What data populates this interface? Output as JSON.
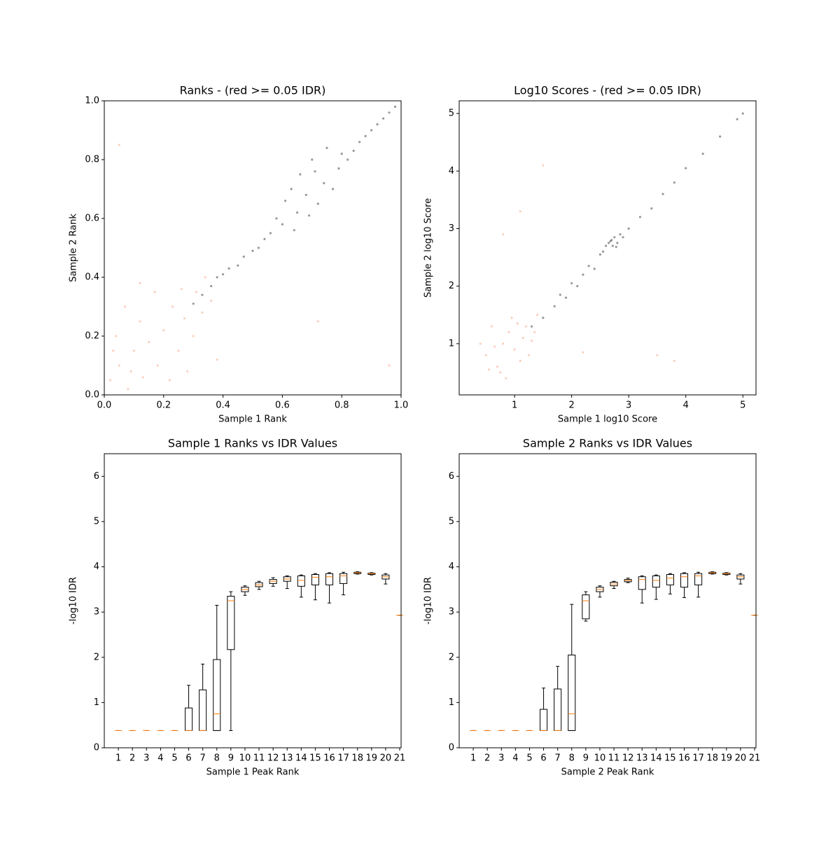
{
  "chart_data": [
    {
      "type": "scatter",
      "title": "Ranks - (red >= 0.05 IDR)",
      "xlabel": "Sample 1 Rank",
      "ylabel": "Sample 2 Rank",
      "xlim": [
        0,
        1
      ],
      "ylim": [
        0,
        1
      ],
      "xticks": [
        {
          "value": 0,
          "label": "0.0"
        },
        0.2,
        0.4,
        0.6,
        0.8,
        {
          "value": 1,
          "label": "1.0"
        }
      ],
      "yticks": [
        {
          "value": 0,
          "label": "0.0"
        },
        0.2,
        0.4,
        0.6,
        0.8,
        {
          "value": 1,
          "label": "1.0"
        }
      ],
      "series": [
        {
          "color": "#333333",
          "x": [
            0.3,
            0.33,
            0.36,
            0.38,
            0.4,
            0.42,
            0.45,
            0.47,
            0.5,
            0.52,
            0.54,
            0.56,
            0.58,
            0.6,
            0.61,
            0.63,
            0.65,
            0.66,
            0.68,
            0.7,
            0.72,
            0.74,
            0.75,
            0.77,
            0.79,
            0.8,
            0.82,
            0.84,
            0.86,
            0.88,
            0.9,
            0.92,
            0.94,
            0.96,
            0.98,
            0.69,
            0.71,
            0.64
          ],
          "values": [
            0.31,
            0.34,
            0.37,
            0.4,
            0.41,
            0.43,
            0.44,
            0.47,
            0.49,
            0.5,
            0.53,
            0.55,
            0.6,
            0.58,
            0.66,
            0.7,
            0.62,
            0.75,
            0.68,
            0.8,
            0.65,
            0.72,
            0.84,
            0.7,
            0.77,
            0.82,
            0.8,
            0.83,
            0.86,
            0.88,
            0.9,
            0.92,
            0.94,
            0.96,
            0.98,
            0.61,
            0.76,
            0.56
          ]
        },
        {
          "color": "#f4a582",
          "x": [
            0.02,
            0.04,
            0.05,
            0.07,
            0.08,
            0.1,
            0.12,
            0.13,
            0.15,
            0.17,
            0.18,
            0.2,
            0.22,
            0.23,
            0.25,
            0.27,
            0.28,
            0.3,
            0.31,
            0.33,
            0.34,
            0.36,
            0.38,
            0.12,
            0.05,
            0.96,
            0.72,
            0.03,
            0.09,
            0.26
          ],
          "values": [
            0.05,
            0.2,
            0.1,
            0.3,
            0.02,
            0.15,
            0.25,
            0.06,
            0.18,
            0.35,
            0.1,
            0.22,
            0.05,
            0.3,
            0.15,
            0.26,
            0.08,
            0.2,
            0.35,
            0.28,
            0.4,
            0.32,
            0.12,
            0.38,
            0.85,
            0.1,
            0.25,
            0.15,
            0.08,
            0.36
          ]
        }
      ]
    },
    {
      "type": "scatter",
      "title": "Log10 Scores - (red >= 0.05 IDR)",
      "xlabel": "Sample 1 log10 Score",
      "ylabel": "Sample 2 log10 Score",
      "xlim": [
        0.03,
        5.23
      ],
      "ylim": [
        0.11,
        5.22
      ],
      "xticks": [
        1,
        2,
        3,
        4,
        5
      ],
      "yticks": [
        1,
        2,
        3,
        4,
        5
      ],
      "series": [
        {
          "color": "#333333",
          "x": [
            1.3,
            1.5,
            1.7,
            1.8,
            1.9,
            2.0,
            2.1,
            2.2,
            2.3,
            2.4,
            2.5,
            2.55,
            2.6,
            2.65,
            2.7,
            2.72,
            2.75,
            2.8,
            2.85,
            2.9,
            3.0,
            3.2,
            3.4,
            3.6,
            3.8,
            4.0,
            4.3,
            4.6,
            4.9,
            5.0,
            2.68,
            2.78
          ],
          "values": [
            1.3,
            1.45,
            1.65,
            1.85,
            1.8,
            2.05,
            2.0,
            2.2,
            2.35,
            2.3,
            2.55,
            2.6,
            2.7,
            2.75,
            2.8,
            2.7,
            2.85,
            2.75,
            2.9,
            2.85,
            3.0,
            3.2,
            3.35,
            3.6,
            3.8,
            4.05,
            4.3,
            4.6,
            4.9,
            5.0,
            2.78,
            2.68
          ]
        },
        {
          "color": "#f4a582",
          "x": [
            0.5,
            0.6,
            0.7,
            0.8,
            0.85,
            0.9,
            1.0,
            1.05,
            1.1,
            1.15,
            1.2,
            1.25,
            1.3,
            0.4,
            0.75,
            0.95,
            1.35,
            1.4,
            0.65,
            1.5,
            0.8,
            1.1,
            3.5,
            3.8,
            2.2,
            0.55
          ],
          "values": [
            0.8,
            1.3,
            0.6,
            1.0,
            0.4,
            1.2,
            0.9,
            1.35,
            0.7,
            1.1,
            1.3,
            0.8,
            1.05,
            1.0,
            0.5,
            1.45,
            1.2,
            1.5,
            0.95,
            4.1,
            2.9,
            3.3,
            0.8,
            0.7,
            0.85,
            0.55
          ]
        }
      ]
    },
    {
      "type": "box",
      "title": "Sample 1 Ranks vs IDR Values",
      "xlabel": "Sample 1 Peak Rank",
      "ylabel": "-log10 IDR",
      "xlim": [
        0,
        21.1
      ],
      "ylim": [
        0,
        6.5
      ],
      "yticks": [
        0,
        1,
        2,
        3,
        4,
        5,
        6
      ],
      "xticks": [
        1,
        2,
        3,
        4,
        5,
        6,
        7,
        8,
        9,
        10,
        11,
        12,
        13,
        14,
        15,
        16,
        17,
        18,
        19,
        20,
        21
      ],
      "min": [
        0.38,
        0.38,
        0.38,
        0.38,
        0.38,
        0.38,
        0.38,
        0.38,
        0.38,
        3.37,
        3.5,
        3.57,
        3.52,
        3.33,
        3.27,
        3.2,
        3.38,
        3.84,
        3.82,
        3.62,
        2.93
      ],
      "q1": [
        0.38,
        0.38,
        0.38,
        0.38,
        0.38,
        0.38,
        0.38,
        0.38,
        2.17,
        3.45,
        3.56,
        3.63,
        3.68,
        3.57,
        3.6,
        3.6,
        3.63,
        3.85,
        3.83,
        3.73,
        2.93
      ],
      "median": [
        0.38,
        0.38,
        0.38,
        0.38,
        0.38,
        0.38,
        0.38,
        0.75,
        3.25,
        3.5,
        3.6,
        3.68,
        3.73,
        3.7,
        3.77,
        3.78,
        3.8,
        3.87,
        3.85,
        3.78,
        2.93
      ],
      "q3": [
        0.38,
        0.38,
        0.38,
        0.38,
        0.38,
        0.88,
        1.28,
        1.95,
        3.35,
        3.55,
        3.65,
        3.72,
        3.78,
        3.8,
        3.83,
        3.85,
        3.85,
        3.88,
        3.86,
        3.82,
        2.93
      ],
      "max": [
        0.38,
        0.38,
        0.38,
        0.38,
        0.38,
        1.38,
        1.85,
        3.15,
        3.45,
        3.58,
        3.68,
        3.76,
        3.8,
        3.82,
        3.85,
        3.87,
        3.88,
        3.89,
        3.87,
        3.85,
        2.93
      ]
    },
    {
      "type": "box",
      "title": "Sample 2 Ranks vs IDR Values",
      "xlabel": "Sample 2 Peak Rank",
      "ylabel": "-log10 IDR",
      "xlim": [
        0,
        21.1
      ],
      "ylim": [
        0,
        6.5
      ],
      "yticks": [
        0,
        1,
        2,
        3,
        4,
        5,
        6
      ],
      "xticks": [
        1,
        2,
        3,
        4,
        5,
        6,
        7,
        8,
        9,
        10,
        11,
        12,
        13,
        14,
        15,
        16,
        17,
        18,
        19,
        20,
        21
      ],
      "min": [
        0.38,
        0.38,
        0.38,
        0.38,
        0.38,
        0.38,
        0.38,
        0.38,
        2.8,
        3.33,
        3.52,
        3.65,
        3.2,
        3.28,
        3.4,
        3.32,
        3.33,
        3.84,
        3.82,
        3.62,
        2.93
      ],
      "q1": [
        0.38,
        0.38,
        0.38,
        0.38,
        0.38,
        0.38,
        0.38,
        0.38,
        2.85,
        3.45,
        3.58,
        3.67,
        3.5,
        3.55,
        3.6,
        3.55,
        3.6,
        3.85,
        3.83,
        3.73,
        2.93
      ],
      "median": [
        0.38,
        0.38,
        0.38,
        0.38,
        0.38,
        0.38,
        0.38,
        0.75,
        3.25,
        3.5,
        3.62,
        3.7,
        3.72,
        3.7,
        3.75,
        3.78,
        3.8,
        3.87,
        3.85,
        3.78,
        2.93
      ],
      "q3": [
        0.38,
        0.38,
        0.38,
        0.38,
        0.38,
        0.85,
        1.3,
        2.05,
        3.38,
        3.55,
        3.66,
        3.72,
        3.78,
        3.8,
        3.83,
        3.85,
        3.85,
        3.88,
        3.86,
        3.82,
        2.93
      ],
      "max": [
        0.38,
        0.38,
        0.38,
        0.38,
        0.38,
        1.32,
        1.8,
        3.17,
        3.45,
        3.58,
        3.68,
        3.75,
        3.8,
        3.82,
        3.85,
        3.87,
        3.88,
        3.89,
        3.87,
        3.85,
        2.93
      ]
    }
  ]
}
